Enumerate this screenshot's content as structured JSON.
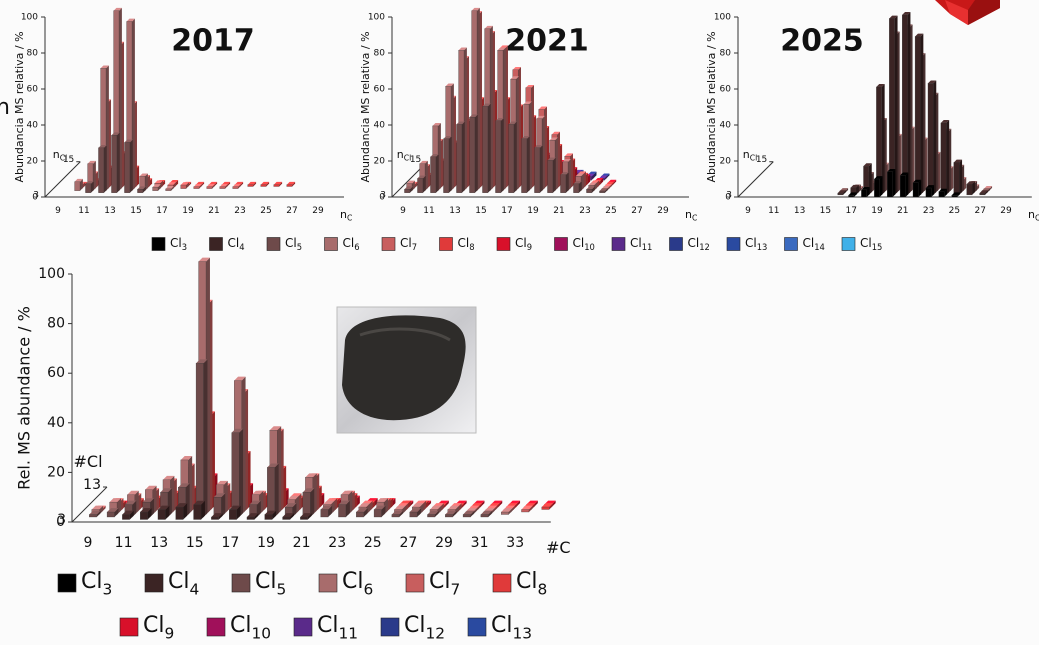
{
  "fragment_text": "n",
  "chart_data": [
    {
      "type": "bar3d",
      "title": "2017",
      "y_label": "Abundancia MS relativa / %",
      "x_label": {
        "text": "n",
        "sub": "C"
      },
      "z_label": {
        "text": "n",
        "sub": "Cl"
      },
      "ylim": [
        0,
        100
      ],
      "yticks": [
        0,
        20,
        40,
        60,
        80,
        100
      ],
      "zlim": [
        3,
        15
      ],
      "zticks": [
        3,
        15
      ],
      "categories": [
        "9",
        null,
        "11",
        null,
        "13",
        null,
        "15",
        null,
        "17",
        null,
        "19",
        null,
        "21",
        null,
        "23",
        null,
        "25",
        null,
        "27",
        null,
        "29",
        null
      ],
      "series": [
        {
          "name": "Cl5",
          "color": "#6e4a4a",
          "values": [
            0,
            0,
            5,
            25,
            32,
            28,
            2,
            0,
            0,
            0,
            0,
            0,
            0,
            0,
            0,
            0,
            0,
            0,
            0,
            0,
            0,
            0
          ]
        },
        {
          "name": "Cl6",
          "color": "#a86c6c",
          "values": [
            0,
            5,
            15,
            68,
            100,
            94,
            8,
            2,
            1,
            0,
            0,
            0,
            0,
            0,
            0,
            0,
            0,
            0,
            0,
            0,
            0,
            0
          ]
        },
        {
          "name": "Cl7",
          "color": "#c85e5e",
          "values": [
            0,
            2,
            8,
            48,
            80,
            47,
            6,
            3,
            2,
            2,
            1,
            1,
            1,
            1,
            0,
            0,
            0,
            0,
            0,
            0,
            0,
            0
          ]
        },
        {
          "name": "Cl8",
          "color": "#e03a3a",
          "values": [
            0,
            1,
            3,
            10,
            18,
            10,
            3,
            2,
            2,
            1,
            1,
            1,
            1,
            1,
            1,
            1,
            1,
            1,
            0,
            0,
            0,
            0
          ]
        }
      ]
    },
    {
      "type": "bar3d",
      "title": "2021",
      "y_label": "Abundancia MS relativa / %",
      "x_label": {
        "text": "n",
        "sub": "C"
      },
      "z_label": {
        "text": "n",
        "sub": "Cl"
      },
      "ylim": [
        0,
        100
      ],
      "yticks": [
        0,
        20,
        40,
        60,
        80,
        100
      ],
      "zlim": [
        3,
        15
      ],
      "zticks": [
        3,
        15
      ],
      "categories": [
        "9",
        null,
        "11",
        null,
        "13",
        null,
        "15",
        null,
        "17",
        null,
        "19",
        null,
        "21",
        null,
        "23",
        null,
        "25",
        null,
        "27",
        null,
        "29",
        null
      ],
      "series": [
        {
          "name": "Cl5",
          "color": "#6e4a4a",
          "values": [
            2,
            8,
            20,
            30,
            38,
            42,
            48,
            40,
            38,
            30,
            25,
            18,
            10,
            5,
            2,
            1,
            0,
            0,
            0,
            0,
            0,
            0
          ]
        },
        {
          "name": "Cl6",
          "color": "#a86c6c",
          "values": [
            4,
            15,
            36,
            58,
            78,
            100,
            90,
            78,
            62,
            48,
            40,
            28,
            16,
            8,
            3,
            1,
            0,
            0,
            0,
            0,
            0,
            0
          ]
        },
        {
          "name": "Cl7",
          "color": "#c85e5e",
          "values": [
            2,
            12,
            26,
            50,
            72,
            97,
            86,
            78,
            66,
            56,
            44,
            30,
            18,
            8,
            3,
            1,
            0,
            0,
            0,
            0,
            0,
            0
          ]
        },
        {
          "name": "Cl8",
          "color": "#e03a3a",
          "values": [
            1,
            6,
            14,
            24,
            36,
            48,
            52,
            48,
            44,
            38,
            32,
            22,
            14,
            6,
            2,
            1,
            0,
            0,
            0,
            0,
            0,
            0
          ]
        },
        {
          "name": "Cl9",
          "color": "#d8102a",
          "values": [
            0,
            2,
            6,
            10,
            16,
            22,
            26,
            24,
            22,
            20,
            16,
            12,
            8,
            4,
            2,
            1,
            0,
            0,
            0,
            0,
            0,
            0
          ]
        },
        {
          "name": "Cl11",
          "color": "#5a2a8a",
          "values": [
            0,
            0,
            1,
            2,
            3,
            5,
            6,
            8,
            8,
            8,
            7,
            6,
            4,
            2,
            1,
            0,
            0,
            0,
            0,
            0,
            0,
            0
          ]
        },
        {
          "name": "Cl12",
          "color": "#2a3a8a",
          "values": [
            0,
            0,
            0,
            1,
            1,
            2,
            3,
            4,
            5,
            6,
            6,
            5,
            3,
            2,
            1,
            0,
            0,
            0,
            0,
            0,
            0,
            0
          ]
        }
      ]
    },
    {
      "type": "bar3d",
      "title": "2025",
      "y_label": "Abundancia MS relativa / %",
      "x_label": {
        "text": "n",
        "sub": "C"
      },
      "z_label": {
        "text": "n",
        "sub": "Cl"
      },
      "ylim": [
        0,
        100
      ],
      "yticks": [
        0,
        20,
        40,
        60,
        80,
        100
      ],
      "zlim": [
        3,
        15
      ],
      "zticks": [
        3,
        15
      ],
      "categories": [
        "9",
        null,
        "11",
        null,
        "13",
        null,
        "15",
        null,
        "17",
        null,
        "19",
        null,
        "21",
        null,
        "23",
        null,
        "25",
        null,
        "27",
        null,
        "29",
        null
      ],
      "series": [
        {
          "name": "Cl3",
          "color": "#000000",
          "values": [
            0,
            0,
            0,
            0,
            0,
            0,
            0,
            0,
            1,
            4,
            10,
            14,
            12,
            8,
            5,
            3,
            1,
            0,
            0,
            0,
            0,
            0
          ]
        },
        {
          "name": "Cl4",
          "color": "#3b2424",
          "values": [
            0,
            0,
            0,
            0,
            0,
            0,
            0,
            1,
            4,
            16,
            60,
            98,
            100,
            88,
            62,
            40,
            18,
            6,
            1,
            0,
            0,
            0
          ]
        },
        {
          "name": "Cl5",
          "color": "#6e4a4a",
          "values": [
            0,
            0,
            0,
            0,
            0,
            0,
            0,
            1,
            3,
            10,
            40,
            88,
            92,
            76,
            54,
            34,
            14,
            5,
            1,
            0,
            0,
            0
          ]
        },
        {
          "name": "Cl6",
          "color": "#a86c6c",
          "values": [
            0,
            0,
            0,
            0,
            0,
            0,
            0,
            0,
            1,
            4,
            14,
            30,
            34,
            28,
            20,
            12,
            6,
            2,
            1,
            0,
            0,
            0
          ]
        }
      ]
    },
    {
      "type": "bar3d",
      "y_label": "Rel. MS abundance / %",
      "x_label": {
        "text": "#C",
        "sub": ""
      },
      "z_label": {
        "text": "#Cl",
        "sub": ""
      },
      "ylim": [
        0,
        100
      ],
      "yticks": [
        0,
        20,
        40,
        60,
        80,
        100
      ],
      "zlim": [
        3,
        13
      ],
      "zticks": [
        3,
        13
      ],
      "categories": [
        "9",
        null,
        "11",
        null,
        "13",
        null,
        "15",
        null,
        "17",
        null,
        "19",
        null,
        "21",
        null,
        "23",
        null,
        "25",
        null,
        "27",
        null,
        "29",
        null,
        "31",
        null,
        "33",
        null
      ],
      "series": [
        {
          "name": "Cl4",
          "color": "#3b2424",
          "values": [
            0,
            0,
            2,
            3,
            4,
            5,
            6,
            1,
            4,
            1,
            2,
            1,
            1,
            0,
            0,
            0,
            0,
            0,
            0,
            0,
            0,
            0,
            0,
            0,
            0,
            0
          ]
        },
        {
          "name": "Cl5",
          "color": "#6e4a4a",
          "values": [
            1,
            2,
            5,
            6,
            10,
            12,
            62,
            8,
            34,
            5,
            20,
            4,
            10,
            3,
            5,
            2,
            3,
            1,
            2,
            1,
            1,
            1,
            1,
            0,
            0,
            0
          ]
        },
        {
          "name": "Cl6",
          "color": "#a86c6c",
          "values": [
            2,
            5,
            8,
            10,
            14,
            22,
            102,
            12,
            54,
            8,
            34,
            6,
            15,
            4,
            8,
            3,
            5,
            2,
            3,
            2,
            2,
            1,
            1,
            1,
            0,
            0
          ]
        },
        {
          "name": "Cl7",
          "color": "#c85e5e",
          "values": [
            1,
            4,
            6,
            8,
            12,
            18,
            84,
            10,
            48,
            7,
            32,
            6,
            14,
            4,
            7,
            3,
            4,
            2,
            3,
            2,
            2,
            1,
            1,
            1,
            1,
            0
          ]
        },
        {
          "name": "Cl8",
          "color": "#e03a3a",
          "values": [
            0,
            2,
            3,
            4,
            6,
            8,
            38,
            6,
            22,
            5,
            16,
            4,
            8,
            3,
            5,
            2,
            3,
            2,
            2,
            1,
            1,
            1,
            1,
            1,
            1,
            1
          ]
        },
        {
          "name": "Cl9",
          "color": "#d8102a",
          "values": [
            0,
            1,
            1,
            2,
            3,
            4,
            12,
            3,
            8,
            2,
            6,
            2,
            4,
            2,
            3,
            2,
            2,
            1,
            1,
            1,
            1,
            1,
            1,
            1,
            1,
            1
          ]
        }
      ]
    }
  ],
  "legends": [
    {
      "entries": [
        {
          "name": "Cl3",
          "color": "#000000"
        },
        {
          "name": "Cl4",
          "color": "#3b2424"
        },
        {
          "name": "Cl5",
          "color": "#6e4a4a"
        },
        {
          "name": "Cl6",
          "color": "#a86c6c"
        },
        {
          "name": "Cl7",
          "color": "#c85e5e"
        },
        {
          "name": "Cl8",
          "color": "#e03a3a"
        },
        {
          "name": "Cl9",
          "color": "#d8102a"
        },
        {
          "name": "Cl10",
          "color": "#a0105a"
        },
        {
          "name": "Cl11",
          "color": "#5a2a8a"
        },
        {
          "name": "Cl12",
          "color": "#2a3a8a"
        },
        {
          "name": "Cl13",
          "color": "#2a4aa0"
        },
        {
          "name": "Cl14",
          "color": "#3a6abf"
        },
        {
          "name": "Cl15",
          "color": "#40b0e8"
        }
      ]
    },
    {
      "entries": [
        {
          "name": "Cl3",
          "color": "#000000"
        },
        {
          "name": "Cl4",
          "color": "#3b2424"
        },
        {
          "name": "Cl5",
          "color": "#6e4a4a"
        },
        {
          "name": "Cl6",
          "color": "#a86c6c"
        },
        {
          "name": "Cl7",
          "color": "#c85e5e"
        },
        {
          "name": "Cl8",
          "color": "#e03a3a"
        },
        {
          "name": "Cl9",
          "color": "#d8102a"
        },
        {
          "name": "Cl10",
          "color": "#a0105a"
        },
        {
          "name": "Cl11",
          "color": "#5a2a8a"
        },
        {
          "name": "Cl12",
          "color": "#2a3a8a"
        },
        {
          "name": "Cl13",
          "color": "#2a4aa0"
        }
      ]
    }
  ]
}
